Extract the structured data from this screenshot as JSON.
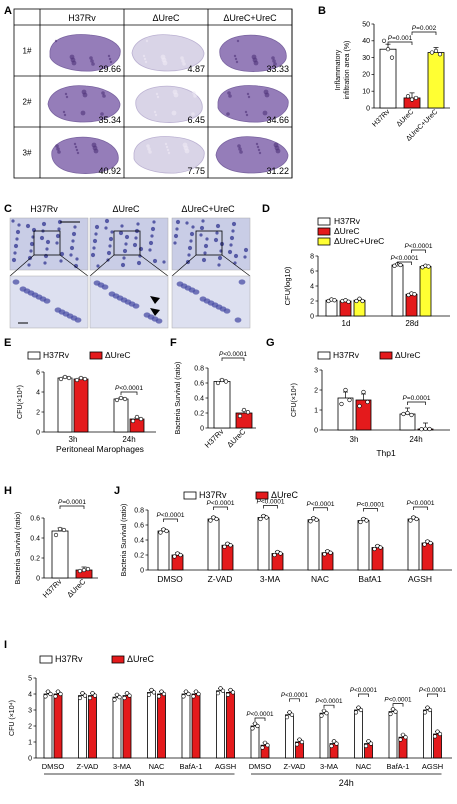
{
  "panels": {
    "A": {
      "letter": "A",
      "columns": [
        "H37Rv",
        "ΔUreC",
        "ΔUreC+UreC"
      ],
      "rows": [
        "1#",
        "2#",
        "3#"
      ],
      "values": [
        [
          "29.66",
          "4.87",
          "33.33"
        ],
        [
          "35.34",
          "6.45",
          "34.66"
        ],
        [
          "40.92",
          "7.75",
          "31.22"
        ]
      ]
    },
    "B": {
      "letter": "B"
    },
    "C": {
      "letter": "C",
      "columns": [
        "H37Rv",
        "ΔUreC",
        "ΔUreC+UreC"
      ]
    },
    "D": {
      "letter": "D"
    },
    "E": {
      "letter": "E"
    },
    "F": {
      "letter": "F"
    },
    "G": {
      "letter": "G"
    },
    "H": {
      "letter": "H"
    },
    "I": {
      "letter": "I"
    },
    "J": {
      "letter": "J"
    }
  },
  "colors": {
    "h37rv": "#ffffff",
    "ureC": "#e41a1c",
    "comp": "#ffff33",
    "tissue": "#8a6fb2",
    "hist": "#c9cde6"
  },
  "chart_data": [
    {
      "id": "B",
      "type": "bar",
      "categories": [
        "H37Rv",
        "ΔUreC",
        "ΔUreC+UreC"
      ],
      "values": [
        35,
        6,
        33
      ],
      "points": [
        [
          40,
          35,
          30
        ],
        [
          7,
          5,
          6
        ],
        [
          33,
          34,
          32
        ]
      ],
      "colors": [
        "#ffffff",
        "#e41a1c",
        "#ffff33"
      ],
      "ylabel": "Inflammatory infiltration area (%)",
      "ylim": [
        0,
        50
      ],
      "yticks": [
        0,
        10,
        20,
        30,
        40,
        50
      ],
      "pvalues": [
        {
          "text": "P=0.001",
          "from": 0,
          "to": 1
        },
        {
          "text": "P=0.002",
          "from": 1,
          "to": 2
        }
      ]
    },
    {
      "id": "D",
      "type": "bar",
      "categories": [
        "1d",
        "28d"
      ],
      "series": [
        {
          "name": "H37Rv",
          "values": [
            2.1,
            6.8
          ],
          "points": [
            [
              2.0,
              2.2,
              2.1
            ],
            [
              6.7,
              6.9,
              6.8
            ]
          ]
        },
        {
          "name": "ΔUreC",
          "values": [
            2.0,
            2.9
          ],
          "points": [
            [
              2.0,
              2.1,
              1.9
            ],
            [
              2.8,
              3.0,
              2.9
            ]
          ]
        },
        {
          "name": "ΔUreC+UreC",
          "values": [
            2.1,
            6.6
          ],
          "points": [
            [
              2.0,
              2.3,
              2.0
            ],
            [
              6.5,
              6.7,
              6.6
            ]
          ]
        }
      ],
      "colors": [
        "#ffffff",
        "#e41a1c",
        "#ffff33"
      ],
      "ylabel": "CFU(log10)",
      "ylim": [
        0,
        8
      ],
      "yticks": [
        0,
        2,
        4,
        6,
        8
      ],
      "pvalues": [
        {
          "text": "P<0.0001",
          "group": 1,
          "from": 0,
          "to": 1
        },
        {
          "text": "P<0.0001",
          "group": 1,
          "from": 1,
          "to": 2
        }
      ]
    },
    {
      "id": "E",
      "type": "bar",
      "categories": [
        "3h",
        "24h"
      ],
      "series": [
        {
          "name": "H37Rv",
          "values": [
            5.4,
            3.3
          ],
          "points": [
            [
              5.3,
              5.5,
              5.4
            ],
            [
              3.2,
              3.4,
              3.3
            ]
          ]
        },
        {
          "name": "ΔUreC",
          "values": [
            5.3,
            1.3
          ],
          "points": [
            [
              5.2,
              5.4,
              5.3
            ],
            [
              1.1,
              1.5,
              1.3
            ]
          ]
        }
      ],
      "colors": [
        "#ffffff",
        "#e41a1c"
      ],
      "ylabel": "CFU(×10⁴)",
      "xlabel": "Peritoneal Marophages",
      "ylim": [
        0,
        6
      ],
      "yticks": [
        0,
        2,
        4,
        6
      ],
      "pvalues": [
        {
          "text": "P<0.0001",
          "group": 1,
          "from": 0,
          "to": 1
        }
      ]
    },
    {
      "id": "F",
      "type": "bar",
      "categories": [
        "H37Rv",
        "ΔUreC"
      ],
      "values": [
        0.62,
        0.2
      ],
      "points": [
        [
          0.6,
          0.64,
          0.62
        ],
        [
          0.16,
          0.24,
          0.21
        ]
      ],
      "colors": [
        "#ffffff",
        "#e41a1c"
      ],
      "ylabel": "Bacteria Survival (ratio)",
      "ylim": [
        0,
        0.8
      ],
      "yticks": [
        0,
        0.2,
        0.4,
        0.6,
        0.8
      ],
      "pvalues": [
        {
          "text": "P<0.0001",
          "from": 0,
          "to": 1
        }
      ]
    },
    {
      "id": "G",
      "type": "bar",
      "categories": [
        "3h",
        "24h"
      ],
      "series": [
        {
          "name": "H37Rv",
          "values": [
            1.6,
            0.8
          ],
          "points": [
            [
              1.3,
              2.0,
              1.5
            ],
            [
              0.8,
              0.85,
              0.75
            ]
          ]
        },
        {
          "name": "ΔUreC",
          "values": [
            1.5,
            0.05
          ],
          "points": [
            [
              1.2,
              1.9,
              1.4
            ],
            [
              0.04,
              0.06,
              0.05
            ]
          ]
        }
      ],
      "colors": [
        "#ffffff",
        "#e41a1c"
      ],
      "ylabel": "CFU(×10⁴)",
      "xlabel": "Thp1",
      "ylim": [
        0,
        3
      ],
      "yticks": [
        0,
        1,
        2,
        3
      ],
      "pvalues": [
        {
          "text": "P=0.0001",
          "group": 1,
          "from": 0,
          "to": 1
        }
      ]
    },
    {
      "id": "H",
      "type": "bar",
      "categories": [
        "H37Rv",
        "ΔUreC"
      ],
      "values": [
        0.47,
        0.08
      ],
      "points": [
        [
          0.43,
          0.49,
          0.48
        ],
        [
          0.07,
          0.08,
          0.09
        ]
      ],
      "colors": [
        "#ffffff",
        "#e41a1c"
      ],
      "ylabel": "Bacteria Survival (ratio)",
      "ylim": [
        0,
        0.6
      ],
      "yticks": [
        0,
        0.2,
        0.4,
        0.6
      ],
      "pvalues": [
        {
          "text": "P=0.0001",
          "from": 0,
          "to": 1
        }
      ]
    },
    {
      "id": "J",
      "type": "bar",
      "categories": [
        "DMSO",
        "Z-VAD",
        "3-MA",
        "NAC",
        "BafA1",
        "AGSH"
      ],
      "series": [
        {
          "name": "H37Rv",
          "values": [
            0.52,
            0.68,
            0.7,
            0.67,
            0.66,
            0.68
          ]
        },
        {
          "name": "ΔUreC",
          "values": [
            0.2,
            0.33,
            0.22,
            0.23,
            0.3,
            0.36
          ]
        }
      ],
      "colors": [
        "#ffffff",
        "#e41a1c"
      ],
      "ylabel": "Bacteria Survival (ratio)",
      "ylim": [
        0,
        0.8
      ],
      "yticks": [
        0,
        0.2,
        0.4,
        0.6,
        0.8
      ],
      "pvalues": [
        "P<0.0001",
        "P<0.0001",
        "P<0.0001",
        "P<0.0001",
        "P<0.0001",
        "P<0.0001"
      ]
    },
    {
      "id": "I",
      "type": "bar",
      "categories": [
        "DMSO",
        "Z-VAD",
        "3-MA",
        "NAC",
        "BafA-1",
        "AGSH",
        "DMSO",
        "Z-VAD",
        "3-MA",
        "NAC",
        "BafA-1",
        "AGSH"
      ],
      "groups": [
        {
          "label": "3h",
          "from": 0,
          "to": 5
        },
        {
          "label": "24h",
          "from": 6,
          "to": 11
        }
      ],
      "series": [
        {
          "name": "H37Rv",
          "values": [
            4.0,
            3.9,
            3.8,
            4.1,
            4.0,
            4.2,
            2.0,
            2.7,
            2.8,
            3.0,
            2.9,
            3.0
          ]
        },
        {
          "name": "ΔUreC",
          "values": [
            4.0,
            3.9,
            3.9,
            4.0,
            4.0,
            4.1,
            0.8,
            1.0,
            0.9,
            0.9,
            1.3,
            1.5
          ]
        }
      ],
      "colors": [
        "#ffffff",
        "#e41a1c"
      ],
      "ylabel": "CFU (×10⁴)",
      "ylim": [
        0,
        5
      ],
      "yticks": [
        0,
        1,
        2,
        3,
        4,
        5
      ],
      "pvalues": [
        "P<0.0001",
        "P<0.0001",
        "P<0.0001",
        "P<0.0001",
        "P<0.0001",
        "P<0.0001"
      ],
      "pvalues_group_start": 6
    }
  ]
}
